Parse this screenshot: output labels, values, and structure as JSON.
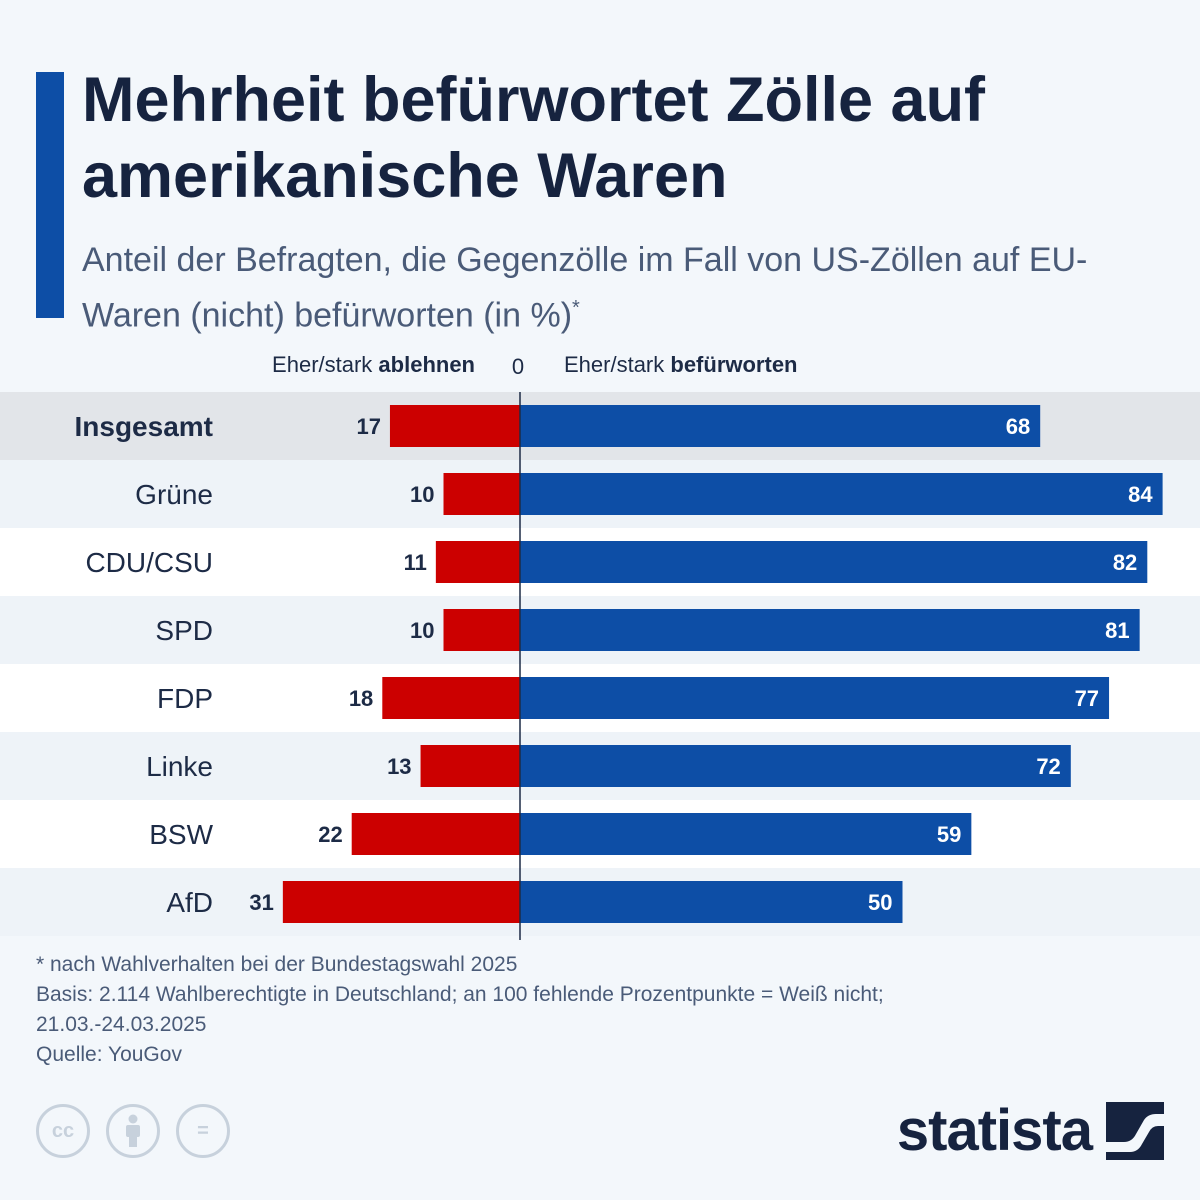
{
  "header": {
    "title": "Mehrheit befürwortet Zölle auf amerikanische Waren",
    "subtitle": "Anteil der Befragten, die Gegenzölle im Fall von US-Zöllen auf EU-Waren (nicht) befürworten (in %)",
    "subtitle_mark": "*"
  },
  "chart_data": {
    "type": "bar",
    "orientation": "horizontal-diverging",
    "categories": [
      "Insgesamt",
      "Grüne",
      "CDU/CSU",
      "SPD",
      "FDP",
      "Linke",
      "BSW",
      "AfD"
    ],
    "series": [
      {
        "name_prefix": "Eher/stark ",
        "name_emphasis": "ablehnen",
        "color": "#cc0000",
        "values": [
          17,
          10,
          11,
          10,
          18,
          13,
          22,
          31
        ]
      },
      {
        "name_prefix": "Eher/stark ",
        "name_emphasis": "befürworten",
        "color": "#0d4ea6",
        "values": [
          68,
          84,
          82,
          81,
          77,
          72,
          59,
          50
        ]
      }
    ],
    "zero_label": "0",
    "highlight_category": "Insgesamt",
    "grid": false
  },
  "footnotes": {
    "note": "* nach Wahlverhalten bei der Bundestagswahl 2025",
    "basis": "Basis: 2.114 Wahlberechtigte in Deutschland; an 100 fehlende Prozentpunkte = Weiß nicht;",
    "period": "21.03.-24.03.2025",
    "source": "Quelle: YouGov"
  },
  "license_icons": [
    "cc-icon",
    "attribution-icon",
    "no-derivatives-icon"
  ],
  "license_glyphs": [
    "cc",
    "="
  ],
  "brand": {
    "name": "statista",
    "logo_icon": "statista-logo-icon"
  }
}
